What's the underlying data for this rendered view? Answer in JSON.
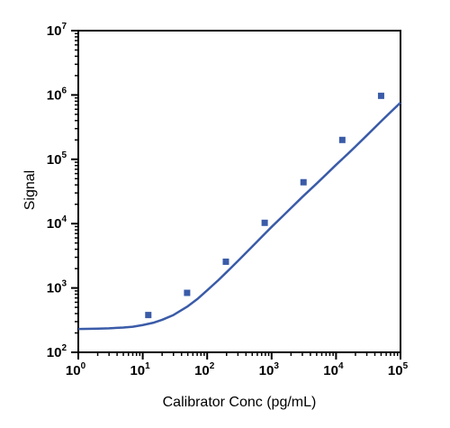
{
  "chart_data": {
    "type": "scatter",
    "title": "",
    "xlabel": "Calibrator Conc (pg/mL)",
    "ylabel": "Signal",
    "x_scale": "log",
    "y_scale": "log",
    "xlim": [
      1,
      100000
    ],
    "ylim": [
      100,
      10000000
    ],
    "x_ticks": [
      {
        "base": "10",
        "exp": "0"
      },
      {
        "base": "10",
        "exp": "1"
      },
      {
        "base": "10",
        "exp": "2"
      },
      {
        "base": "10",
        "exp": "3"
      },
      {
        "base": "10",
        "exp": "4"
      },
      {
        "base": "10",
        "exp": "5"
      }
    ],
    "y_ticks": [
      {
        "base": "10",
        "exp": "2"
      },
      {
        "base": "10",
        "exp": "3"
      },
      {
        "base": "10",
        "exp": "4"
      },
      {
        "base": "10",
        "exp": "5"
      },
      {
        "base": "10",
        "exp": "6"
      },
      {
        "base": "10",
        "exp": "7"
      }
    ],
    "grid": false,
    "legend": "none",
    "colors": {
      "series": "#3a5ba8",
      "axis": "#000000"
    },
    "series": [
      {
        "type": "scatter",
        "x": [
          12.2,
          48.8,
          195,
          781,
          3125,
          12500,
          50000
        ],
        "y": [
          380,
          840,
          2560,
          10300,
          44000,
          200000,
          970000
        ]
      },
      {
        "type": "line",
        "x": [
          1,
          2,
          3,
          5,
          7,
          10,
          15,
          20,
          30,
          50,
          70,
          100,
          150,
          200,
          300,
          500,
          700,
          1000,
          1500,
          2000,
          3000,
          5000,
          7000,
          10000,
          15000,
          20000,
          30000,
          50000,
          70000,
          100000
        ],
        "y": [
          230,
          233,
          236,
          243,
          250,
          265,
          290,
          320,
          380,
          520,
          670,
          920,
          1330,
          1760,
          2630,
          4400,
          6200,
          8900,
          13200,
          17500,
          26000,
          42000,
          58000,
          82000,
          120000,
          158000,
          235000,
          390000,
          540000,
          760000
        ]
      }
    ]
  }
}
